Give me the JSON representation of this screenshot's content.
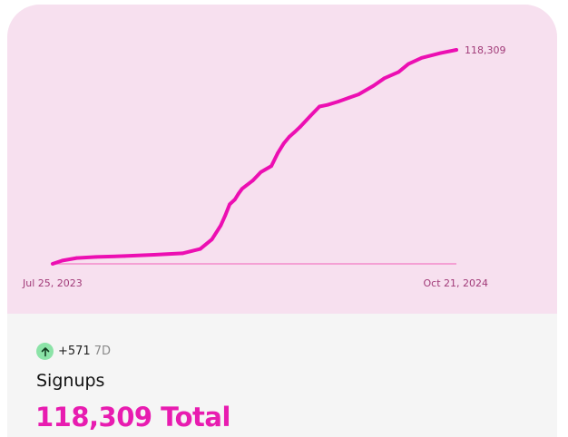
{
  "chart_data": {
    "type": "line",
    "x_start_label": "Jul 25, 2023",
    "x_end_label": "Oct 21, 2024",
    "last_value_label": "118,309",
    "ylim": [
      0,
      118309
    ],
    "series": [
      {
        "x": [
          "Jul 25, 2023",
          "Aug 5, 2023",
          "Aug 21, 2023",
          "Sep 12, 2023",
          "Oct 14, 2023",
          "Nov 16, 2023",
          "Dec 18, 2023",
          "Jan 7, 2024",
          "Jan 20, 2024",
          "Jan 30, 2024",
          "Feb 4, 2024",
          "Feb 9, 2024",
          "Feb 15, 2024",
          "Feb 19, 2024",
          "Feb 23, 2024",
          "Mar 6, 2024",
          "Mar 15, 2024",
          "Mar 27, 2024",
          "Apr 3, 2024",
          "Apr 10, 2024",
          "Apr 16, 2024",
          "Apr 22, 2024",
          "Apr 28, 2024",
          "May 10, 2024",
          "May 20, 2024",
          "May 29, 2024",
          "Jun 10, 2024",
          "Jun 22, 2024",
          "Jul 3, 2024",
          "Jul 20, 2024",
          "Aug 1, 2024",
          "Aug 17, 2024",
          "Aug 28, 2024",
          "Sep 12, 2024",
          "Oct 3, 2024",
          "Oct 21, 2024"
        ],
        "values": [
          0,
          1800,
          3200,
          3800,
          4300,
          5000,
          5800,
          8200,
          13500,
          21200,
          26700,
          32900,
          35600,
          38800,
          41500,
          46000,
          50700,
          54100,
          61100,
          66600,
          70200,
          72800,
          75600,
          81900,
          87000,
          87900,
          89700,
          91800,
          93700,
          98500,
          102600,
          106100,
          110500,
          113900,
          116500,
          118309
        ]
      }
    ],
    "colors": {
      "line": "#ec0fb2",
      "baseline": "#f48acb",
      "panel": "#f7e0ef",
      "labels": "#a13a78"
    }
  },
  "summary": {
    "trend_icon": "arrow-up-icon",
    "delta": "+571",
    "period": "7D",
    "metric_name": "Signups",
    "total": "118,309 Total",
    "trend_color": "#8be3a7",
    "accent_color": "#e81cb0"
  }
}
